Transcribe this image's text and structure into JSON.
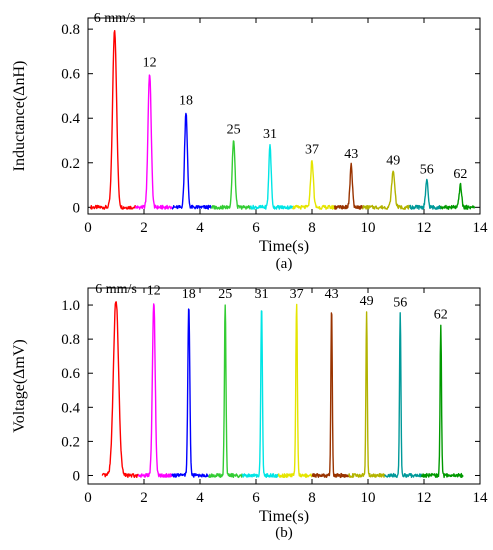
{
  "chart_data": [
    {
      "type": "line",
      "panel_label": "(a)",
      "xlabel": "Time(s)",
      "ylabel": "Inductance(ΔnH)",
      "xlim": [
        0,
        14
      ],
      "ylim": [
        -0.03,
        0.85
      ],
      "xticks": [
        0,
        2,
        4,
        6,
        8,
        10,
        12,
        14
      ],
      "yticks": [
        0,
        0.2,
        0.4,
        0.6,
        0.8
      ],
      "ytick_labels": [
        "0",
        "0.2",
        "0.4",
        "0.6",
        "0.8"
      ],
      "grid": false,
      "series": [
        {
          "name": "6 mm/s",
          "color": "#ff0000",
          "x_range": [
            0.1,
            1.7
          ],
          "peak_x": 0.95,
          "peak_y": 0.8,
          "width": 0.1
        },
        {
          "name": "12",
          "color": "#ff00ff",
          "x_range": [
            1.7,
            3.0
          ],
          "peak_x": 2.2,
          "peak_y": 0.6,
          "width": 0.08
        },
        {
          "name": "18",
          "color": "#0000ff",
          "x_range": [
            3.0,
            4.4
          ],
          "peak_x": 3.5,
          "peak_y": 0.43,
          "width": 0.07
        },
        {
          "name": "25",
          "color": "#33cc33",
          "x_range": [
            4.4,
            5.8
          ],
          "peak_x": 5.2,
          "peak_y": 0.3,
          "width": 0.07
        },
        {
          "name": "31",
          "color": "#00e5e5",
          "x_range": [
            5.8,
            7.3
          ],
          "peak_x": 6.5,
          "peak_y": 0.28,
          "width": 0.06
        },
        {
          "name": "37",
          "color": "#e5e500",
          "x_range": [
            7.3,
            8.8
          ],
          "peak_x": 8.0,
          "peak_y": 0.21,
          "width": 0.07
        },
        {
          "name": "43",
          "color": "#993300",
          "x_range": [
            8.8,
            9.8
          ],
          "peak_x": 9.4,
          "peak_y": 0.19,
          "width": 0.06
        },
        {
          "name": "49",
          "color": "#b3b300",
          "x_range": [
            9.8,
            11.5
          ],
          "peak_x": 10.9,
          "peak_y": 0.16,
          "width": 0.08
        },
        {
          "name": "56",
          "color": "#009999",
          "x_range": [
            11.5,
            12.6
          ],
          "peak_x": 12.1,
          "peak_y": 0.12,
          "width": 0.06
        },
        {
          "name": "62",
          "color": "#009900",
          "x_range": [
            12.6,
            13.8
          ],
          "peak_x": 13.3,
          "peak_y": 0.1,
          "width": 0.06
        }
      ]
    },
    {
      "type": "line",
      "panel_label": "(b)",
      "xlabel": "Time(s)",
      "ylabel": "Voltage(ΔmV)",
      "xlim": [
        0,
        14
      ],
      "ylim": [
        -0.05,
        1.1
      ],
      "xticks": [
        0,
        2,
        4,
        6,
        8,
        10,
        12,
        14
      ],
      "yticks": [
        0,
        0.2,
        0.4,
        0.6,
        0.8,
        1.0
      ],
      "ytick_labels": [
        "0",
        "0.2",
        "0.4",
        "0.6",
        "0.8",
        "1.0"
      ],
      "grid": false,
      "series": [
        {
          "name": "6 mm/s",
          "color": "#ff0000",
          "x_range": [
            0.5,
            1.8
          ],
          "peak_x": 1.0,
          "peak_y": 1.03,
          "width": 0.13
        },
        {
          "name": "12",
          "color": "#ff00ff",
          "x_range": [
            1.8,
            3.0
          ],
          "peak_x": 2.35,
          "peak_y": 1.02,
          "width": 0.07
        },
        {
          "name": "18",
          "color": "#0000ff",
          "x_range": [
            3.0,
            4.3
          ],
          "peak_x": 3.6,
          "peak_y": 1.0,
          "width": 0.05
        },
        {
          "name": "25",
          "color": "#33cc33",
          "x_range": [
            4.3,
            5.5
          ],
          "peak_x": 4.9,
          "peak_y": 1.0,
          "width": 0.04
        },
        {
          "name": "31",
          "color": "#00e5e5",
          "x_range": [
            5.5,
            6.8
          ],
          "peak_x": 6.2,
          "peak_y": 1.0,
          "width": 0.04
        },
        {
          "name": "37",
          "color": "#e5e500",
          "x_range": [
            6.8,
            8.0
          ],
          "peak_x": 7.45,
          "peak_y": 1.0,
          "width": 0.04
        },
        {
          "name": "43",
          "color": "#993300",
          "x_range": [
            8.0,
            9.3
          ],
          "peak_x": 8.7,
          "peak_y": 1.0,
          "width": 0.035
        },
        {
          "name": "49",
          "color": "#b3b300",
          "x_range": [
            9.3,
            10.6
          ],
          "peak_x": 9.95,
          "peak_y": 0.96,
          "width": 0.035
        },
        {
          "name": "56",
          "color": "#009999",
          "x_range": [
            10.6,
            11.9
          ],
          "peak_x": 11.15,
          "peak_y": 0.95,
          "width": 0.035
        },
        {
          "name": "62",
          "color": "#009900",
          "x_range": [
            11.9,
            13.4
          ],
          "peak_x": 12.6,
          "peak_y": 0.88,
          "width": 0.035
        }
      ]
    }
  ]
}
